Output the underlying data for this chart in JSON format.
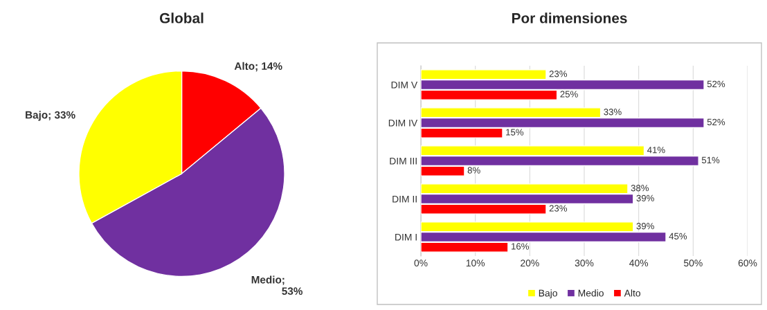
{
  "chart_data": [
    {
      "type": "pie",
      "title": "Global",
      "categories": [
        "Alto",
        "Medio",
        "Bajo"
      ],
      "values": [
        14,
        53,
        33
      ],
      "colors": [
        "#ff0000",
        "#7030a0",
        "#ffff00"
      ],
      "value_labels": [
        "; 14%",
        ";\n53%",
        "; 33%"
      ]
    },
    {
      "type": "bar",
      "title": "Por dimensiones",
      "orientation": "horizontal",
      "categories": [
        "DIM V",
        "DIM IV",
        "DIM III",
        "DIM II",
        "DIM I"
      ],
      "series": [
        {
          "name": "Bajo",
          "color": "#ffff00",
          "values": [
            23,
            33,
            41,
            38,
            39
          ],
          "value_labels": [
            "23%",
            "33%",
            "41%",
            "38%",
            "39%"
          ]
        },
        {
          "name": "Medio",
          "color": "#7030a0",
          "values": [
            52,
            52,
            51,
            39,
            45
          ],
          "value_labels": [
            "52%",
            "52%",
            "51%",
            "39%",
            "45%"
          ]
        },
        {
          "name": "Alto",
          "color": "#ff0000",
          "values": [
            25,
            15,
            8,
            23,
            16
          ],
          "value_labels": [
            "25%",
            "15%",
            "8%",
            "23%",
            "16%"
          ]
        }
      ],
      "xlim": [
        0,
        60
      ],
      "xticks": [
        {
          "value": 0,
          "label": "0%"
        },
        {
          "value": 10,
          "label": "10%"
        },
        {
          "value": 20,
          "label": "20%"
        },
        {
          "value": 30,
          "label": "30%"
        },
        {
          "value": 40,
          "label": "40%"
        },
        {
          "value": 50,
          "label": "50%"
        },
        {
          "value": 60,
          "label": "60%"
        }
      ],
      "grid": "x",
      "legend": "bottom"
    }
  ]
}
